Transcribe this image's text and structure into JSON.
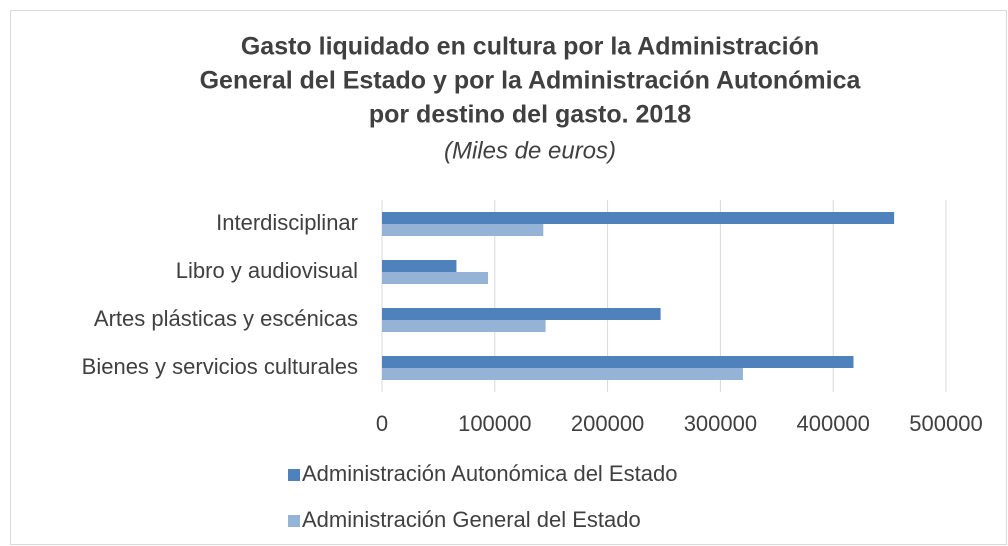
{
  "chart_data": {
    "type": "bar",
    "orientation": "horizontal",
    "title": [
      "Gasto liquidado en cultura por la Administración",
      "General del Estado y por la Administración Autonómica",
      "por destino del gasto. 2018"
    ],
    "subtitle": "(Miles de euros)",
    "categories": [
      "Interdisciplinar",
      "Libro y audiovisual",
      "Artes plásticas y escénicas",
      "Bienes y servicios culturales"
    ],
    "series": [
      {
        "name": "Administración Autonómica del Estado",
        "color": "#4f81bd",
        "values": [
          454000,
          66000,
          247000,
          418000
        ]
      },
      {
        "name": "Administración General del Estado",
        "color": "#95b3d7",
        "values": [
          143000,
          94000,
          145000,
          320000
        ]
      }
    ],
    "xlim": [
      0,
      500000
    ],
    "xticks": [
      0,
      100000,
      200000,
      300000,
      400000,
      500000
    ],
    "grid": true
  }
}
